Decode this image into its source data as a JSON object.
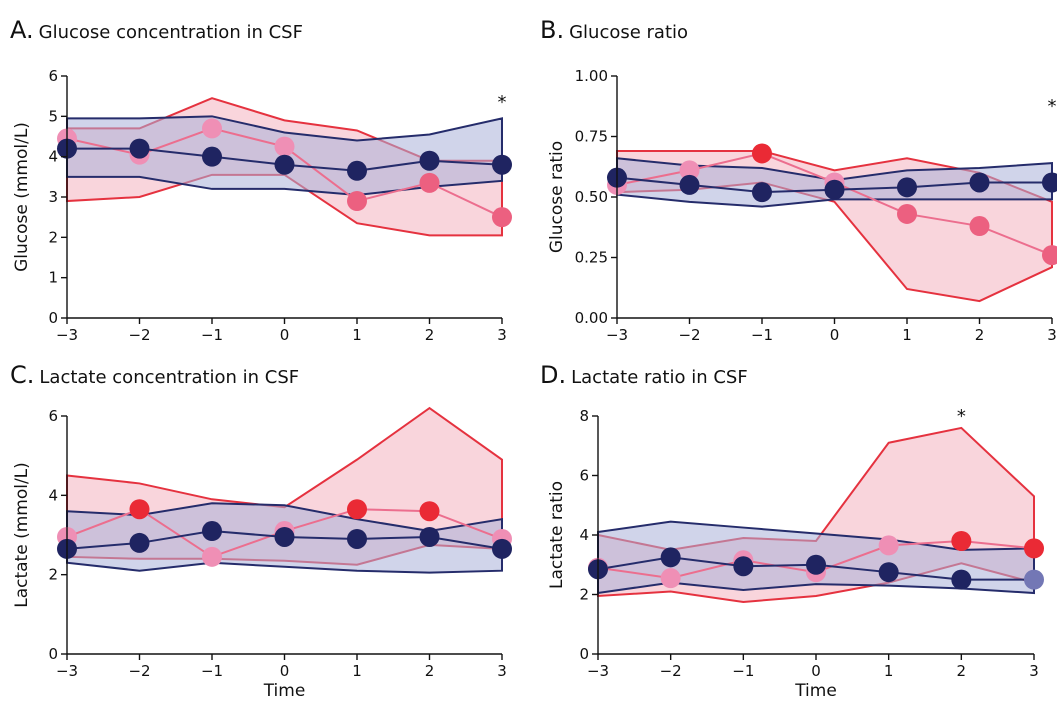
{
  "colors": {
    "series_a_line": "#e5323f",
    "series_a_fill": "#f7c5cf",
    "series_a_median_line": "#ec6e8e",
    "series_a_dot_light": "#ef8fb5",
    "series_a_dot_mid": "#ec6080",
    "series_a_dot_strong": "#ea2a35",
    "series_b_line": "#252c6b",
    "series_b_fill": "#a9b0d8",
    "series_b_dot": "#1f2461"
  },
  "chart_data": [
    {
      "id": "A",
      "type": "line",
      "title_letter": "A.",
      "title": "Glucose concentration in CSF",
      "xlabel": "",
      "ylabel": "Glucose (mmol/L)",
      "xlim": [
        -3,
        3
      ],
      "ylim": [
        0,
        6
      ],
      "x": [
        -3,
        -2,
        -1,
        0,
        1,
        2,
        3
      ],
      "xticks": [
        -3,
        -2,
        -1,
        0,
        1,
        2,
        3
      ],
      "xtick_labels": [
        "−3",
        "−2",
        "−1",
        "0",
        "1",
        "2",
        "3"
      ],
      "yticks": [
        0,
        1,
        2,
        3,
        4,
        5,
        6
      ],
      "ytick_labels": [
        "0",
        "1",
        "2",
        "3",
        "4",
        "5",
        "6"
      ],
      "annotations": [
        {
          "text": "*",
          "x": 3,
          "y": 5.5
        }
      ],
      "series": [
        {
          "median": [
            4.45,
            4.05,
            4.7,
            4.25,
            2.9,
            3.35,
            2.5
          ],
          "upper": [
            4.7,
            4.7,
            5.45,
            4.9,
            4.65,
            3.9,
            3.9
          ],
          "lower": [
            2.9,
            3.0,
            3.55,
            3.55,
            2.35,
            2.05,
            2.05
          ],
          "dot_tones": [
            "light",
            "light",
            "light",
            "light",
            "mid",
            "mid",
            "mid"
          ]
        },
        {
          "median": [
            4.2,
            4.2,
            4.0,
            3.8,
            3.65,
            3.9,
            3.8
          ],
          "upper": [
            4.95,
            4.95,
            5.0,
            4.6,
            4.4,
            4.55,
            4.95
          ],
          "lower": [
            3.5,
            3.5,
            3.2,
            3.2,
            3.05,
            3.25,
            3.4
          ],
          "dot_tones": [
            "dark",
            "dark",
            "dark",
            "dark",
            "dark",
            "dark",
            "dark"
          ]
        }
      ]
    },
    {
      "id": "B",
      "type": "line",
      "title_letter": "B.",
      "title": "Glucose ratio",
      "xlabel": "",
      "ylabel": "Glucose ratio",
      "xlim": [
        -3,
        3
      ],
      "ylim": [
        0,
        1
      ],
      "x": [
        -3,
        -2,
        -1,
        0,
        1,
        2,
        3
      ],
      "xticks": [
        -3,
        -2,
        -1,
        0,
        1,
        2,
        3
      ],
      "xtick_labels": [
        "−3",
        "−2",
        "−1",
        "0",
        "1",
        "2",
        "3"
      ],
      "yticks": [
        0,
        0.25,
        0.5,
        0.75,
        1.0
      ],
      "ytick_labels": [
        "0.00",
        "0.25",
        "0.50",
        "0.75",
        "1.00"
      ],
      "annotations": [
        {
          "text": "*",
          "x": 3,
          "y": 0.9
        }
      ],
      "series": [
        {
          "median": [
            0.55,
            0.61,
            0.68,
            0.56,
            0.43,
            0.38,
            0.26
          ],
          "upper": [
            0.69,
            0.69,
            0.69,
            0.61,
            0.66,
            0.6,
            0.48
          ],
          "lower": [
            0.52,
            0.53,
            0.56,
            0.48,
            0.12,
            0.07,
            0.21
          ],
          "dot_tones": [
            "light",
            "light",
            "strong",
            "light",
            "mid",
            "mid",
            "mid"
          ]
        },
        {
          "median": [
            0.58,
            0.55,
            0.52,
            0.53,
            0.54,
            0.56,
            0.56
          ],
          "upper": [
            0.66,
            0.63,
            0.62,
            0.57,
            0.61,
            0.62,
            0.64
          ],
          "lower": [
            0.51,
            0.48,
            0.46,
            0.49,
            0.49,
            0.49,
            0.49
          ],
          "dot_tones": [
            "dark",
            "dark",
            "dark",
            "dark",
            "dark",
            "dark",
            "dark"
          ]
        }
      ]
    },
    {
      "id": "C",
      "type": "line",
      "title_letter": "C.",
      "title": "Lactate concentration in CSF",
      "xlabel": "Time",
      "ylabel": "Lactate (mmol/L)",
      "xlim": [
        -3,
        3
      ],
      "ylim": [
        0,
        6
      ],
      "x": [
        -3,
        -2,
        -1,
        0,
        1,
        2,
        3
      ],
      "xticks": [
        -3,
        -2,
        -1,
        0,
        1,
        2,
        3
      ],
      "xtick_labels": [
        "−3",
        "−2",
        "−1",
        "0",
        "1",
        "2",
        "3"
      ],
      "yticks": [
        0,
        2,
        4,
        6
      ],
      "ytick_labels": [
        "0",
        "2",
        "4",
        "6"
      ],
      "annotations": [],
      "series": [
        {
          "median": [
            2.95,
            3.65,
            2.45,
            3.1,
            3.65,
            3.6,
            2.9
          ],
          "upper": [
            4.5,
            4.3,
            3.9,
            3.7,
            4.9,
            6.2,
            4.9
          ],
          "lower": [
            2.45,
            2.4,
            2.4,
            2.35,
            2.25,
            2.75,
            2.65
          ],
          "dot_tones": [
            "light",
            "strong",
            "light",
            "light",
            "strong",
            "strong",
            "light"
          ]
        },
        {
          "median": [
            2.65,
            2.8,
            3.1,
            2.95,
            2.9,
            2.95,
            2.65
          ],
          "upper": [
            3.6,
            3.5,
            3.8,
            3.75,
            3.4,
            3.1,
            3.4
          ],
          "lower": [
            2.3,
            2.1,
            2.3,
            2.2,
            2.1,
            2.05,
            2.1
          ],
          "dot_tones": [
            "dark",
            "dark",
            "dark",
            "dark",
            "dark",
            "dark",
            "dark"
          ]
        }
      ]
    },
    {
      "id": "D",
      "type": "line",
      "title_letter": "D.",
      "title": "Lactate ratio in CSF",
      "xlabel": "Time",
      "ylabel": "Lactate ratio",
      "xlim": [
        -3,
        3
      ],
      "ylim": [
        0,
        8
      ],
      "x": [
        -3,
        -2,
        -1,
        0,
        1,
        2,
        3
      ],
      "xticks": [
        -3,
        -2,
        -1,
        0,
        1,
        2,
        3
      ],
      "xtick_labels": [
        "−3",
        "−2",
        "−1",
        "0",
        "1",
        "2",
        "3"
      ],
      "yticks": [
        0,
        2,
        4,
        6,
        8
      ],
      "ytick_labels": [
        "0",
        "2",
        "4",
        "6",
        "8"
      ],
      "annotations": [
        {
          "text": "*",
          "x": 2,
          "y": 8.2
        }
      ],
      "series": [
        {
          "median": [
            2.9,
            2.55,
            3.15,
            2.75,
            3.65,
            3.8,
            3.55
          ],
          "upper": [
            4.0,
            3.5,
            3.9,
            3.8,
            7.1,
            7.6,
            5.3
          ],
          "lower": [
            1.95,
            2.1,
            1.75,
            1.95,
            2.4,
            3.05,
            2.4
          ],
          "dot_tones": [
            "light",
            "light",
            "light",
            "light",
            "light",
            "strong",
            "strong"
          ]
        },
        {
          "median": [
            2.85,
            3.25,
            2.95,
            3.0,
            2.75,
            2.5,
            2.5
          ],
          "upper": [
            4.1,
            4.45,
            4.25,
            4.05,
            3.85,
            3.5,
            3.55
          ],
          "lower": [
            2.05,
            2.4,
            2.15,
            2.35,
            2.3,
            2.2,
            2.05
          ],
          "dot_tones": [
            "dark",
            "dark",
            "dark",
            "dark",
            "dark",
            "dark",
            "mid_blue"
          ]
        }
      ]
    }
  ]
}
